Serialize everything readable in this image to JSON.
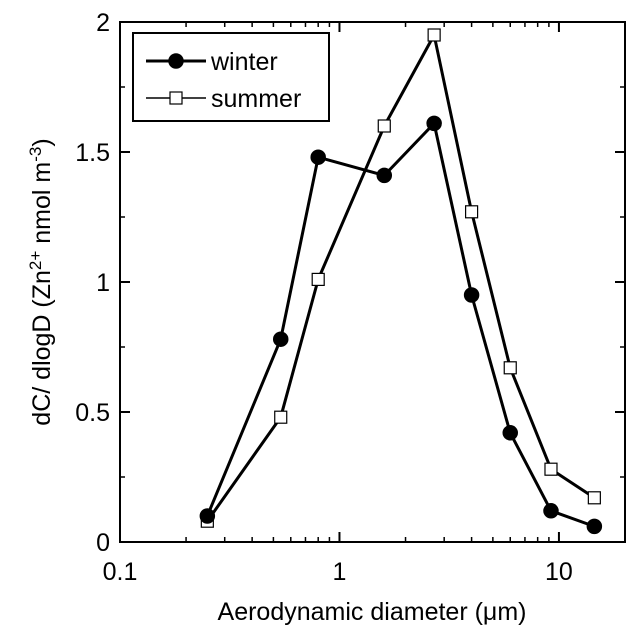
{
  "chart_data": {
    "type": "line",
    "xlabel": "Aerodynamic diameter (μm)",
    "ylabel": {
      "prefix": "dC/ dlogD (Zn",
      "sup1": "2+",
      "middle": " nmol m",
      "sup2": "-3",
      "suffix": ")"
    },
    "x_scale": "log",
    "xlim": [
      0.1,
      20
    ],
    "ylim": [
      0,
      2
    ],
    "x_ticks": [
      {
        "value": 0.1,
        "label": "0.1"
      },
      {
        "value": 1,
        "label": "1"
      },
      {
        "value": 10,
        "label": "10"
      }
    ],
    "x_minor_ticks": [
      0.2,
      0.3,
      0.4,
      0.5,
      0.6,
      0.7,
      0.8,
      0.9,
      2,
      3,
      4,
      5,
      6,
      7,
      8,
      9,
      20
    ],
    "y_ticks": [
      {
        "value": 0,
        "label": "0"
      },
      {
        "value": 0.5,
        "label": "0.5"
      },
      {
        "value": 1,
        "label": "1"
      },
      {
        "value": 1.5,
        "label": "1.5"
      },
      {
        "value": 2,
        "label": "2"
      }
    ],
    "y_minor_ticks": [
      0.25,
      0.75,
      1.25,
      1.75
    ],
    "grid": false,
    "legend_position": "top-left",
    "series": [
      {
        "name": "winter",
        "marker": "filled-circle",
        "color": "#000000",
        "x": [
          0.25,
          0.54,
          0.8,
          1.6,
          2.7,
          4.0,
          6.0,
          9.2,
          14.5
        ],
        "y": [
          0.1,
          0.78,
          1.48,
          1.41,
          1.61,
          0.95,
          0.42,
          0.12,
          0.06
        ]
      },
      {
        "name": "summer",
        "marker": "open-square",
        "color": "#000000",
        "x": [
          0.25,
          0.54,
          0.8,
          1.6,
          2.7,
          4.0,
          6.0,
          9.2,
          14.5
        ],
        "y": [
          0.08,
          0.48,
          1.01,
          1.6,
          1.95,
          1.27,
          0.67,
          0.28,
          0.17
        ]
      }
    ]
  }
}
